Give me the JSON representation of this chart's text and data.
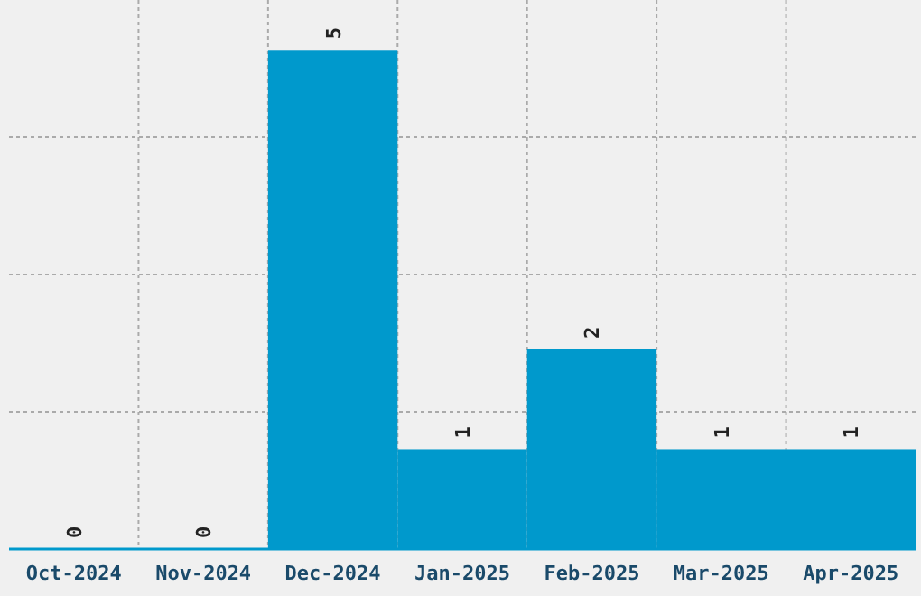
{
  "chart_data": {
    "type": "bar",
    "categories": [
      "Oct-2024",
      "Nov-2024",
      "Dec-2024",
      "Jan-2025",
      "Feb-2025",
      "Mar-2025",
      "Apr-2025"
    ],
    "values": [
      0,
      0,
      5,
      1,
      2,
      1,
      1
    ],
    "color": "#0099cc",
    "data_labels": true,
    "grid": true,
    "tick_labels": "x",
    "ylim": [
      0,
      5.5
    ],
    "yticks": [
      {
        "value": 1.375,
        "label": null
      },
      {
        "value": 2.75,
        "label": null
      },
      {
        "value": 4.125,
        "label": null
      }
    ]
  }
}
